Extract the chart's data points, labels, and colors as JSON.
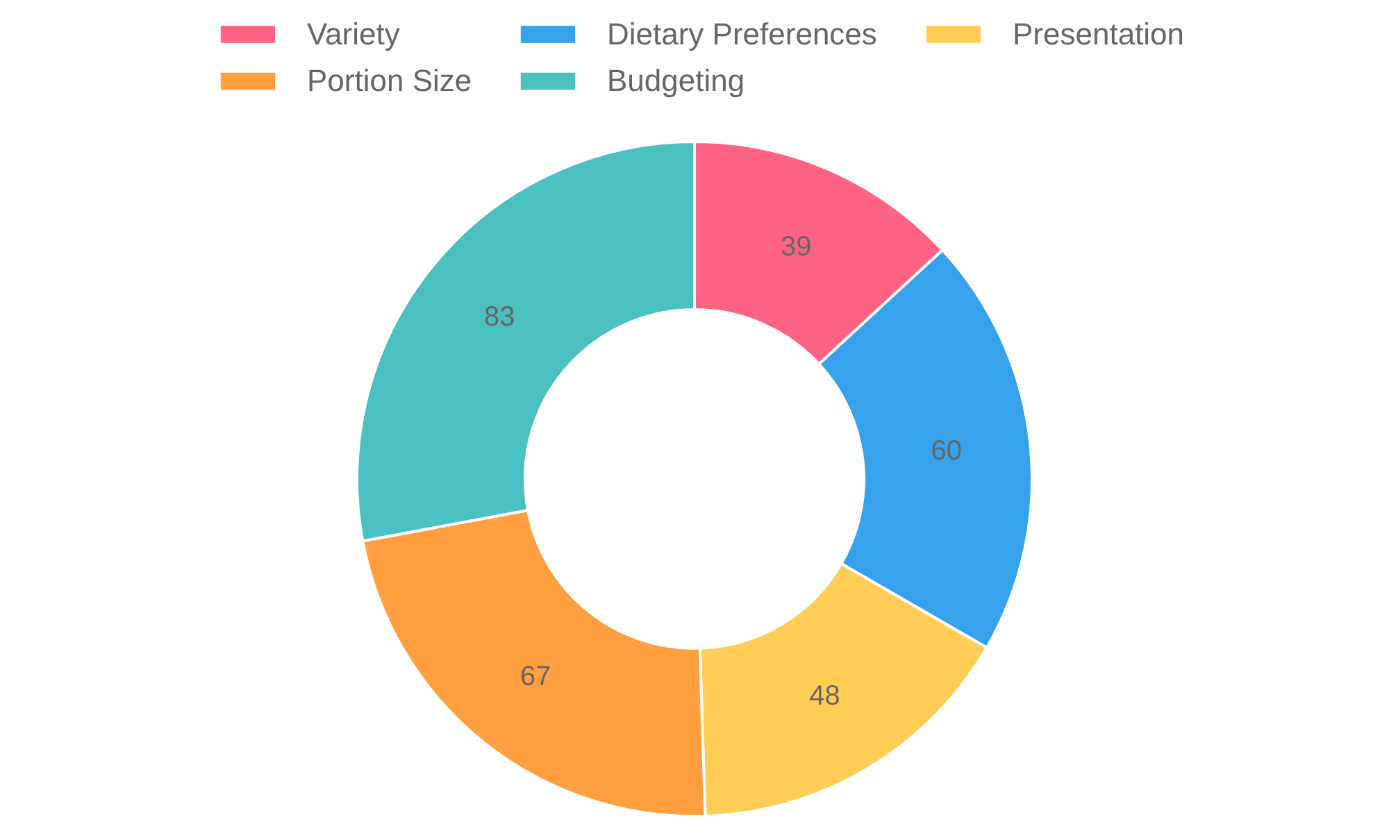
{
  "chart_data": {
    "type": "donut",
    "categories": [
      "Variety",
      "Dietary Preferences",
      "Presentation",
      "Portion Size",
      "Budgeting"
    ],
    "values": [
      39,
      60,
      48,
      67,
      83
    ],
    "colors": [
      "#ff6384",
      "#36a2eb",
      "#ffcd56",
      "#ff9f40",
      "#4bc0c0"
    ],
    "legend": "top",
    "data_labels": true
  }
}
